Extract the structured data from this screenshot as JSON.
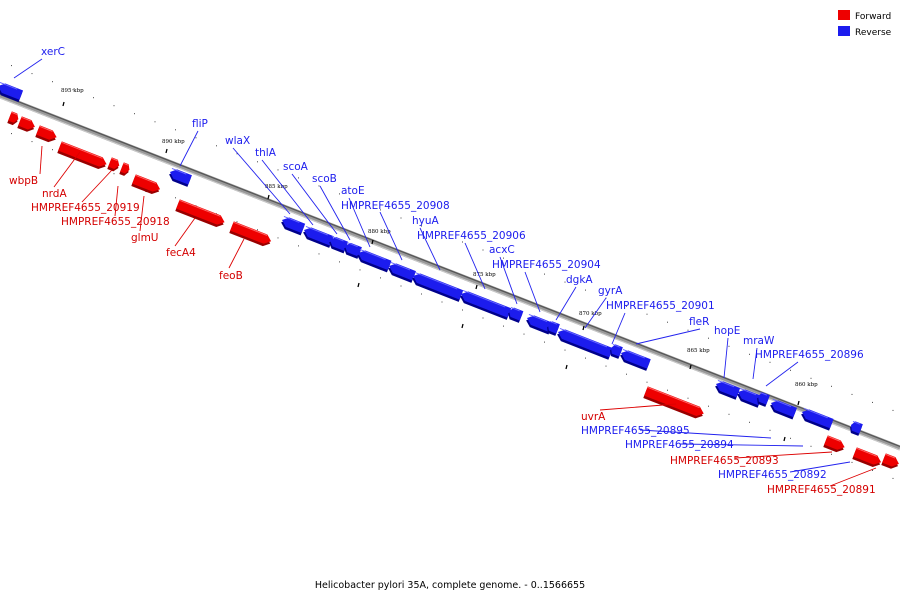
{
  "colors": {
    "forward": "#ee0000",
    "reverse": "#1c1cee",
    "backbone": "#777777"
  },
  "legend": {
    "forward": "Forward",
    "reverse": "Reverse"
  },
  "caption": "Helicobacter pylori 35A, complete genome. - 0..1566655",
  "ticks": [
    "895 kbp",
    "890 kbp",
    "885 kbp",
    "880 kbp",
    "875 kbp",
    "870 kbp",
    "865 kbp",
    "860 kbp"
  ],
  "reverse_genes": [
    "xerC",
    "fliP",
    "wlaX",
    "thlA",
    "scoA",
    "scoB",
    "atoE",
    "HMPREF4655_20908",
    "hyuA",
    "HMPREF4655_20906",
    "acxC",
    "HMPREF4655_20904",
    "dgkA",
    "gyrA",
    "HMPREF4655_20901",
    "fleR",
    "hopE",
    "mraW",
    "HMPREF4655_20896"
  ],
  "forward_genes_upper": [
    "wbpB",
    "nrdA",
    "HMPREF4655_20919",
    "HMPREF4655_20918",
    "glmU",
    "fecA4",
    "feoB"
  ],
  "lower_genes": [
    "uvrA",
    "HMPREF4655_20895",
    "HMPREF4655_20894",
    "HMPREF4655_20893",
    "HMPREF4655_20892",
    "HMPREF4655_20891"
  ]
}
